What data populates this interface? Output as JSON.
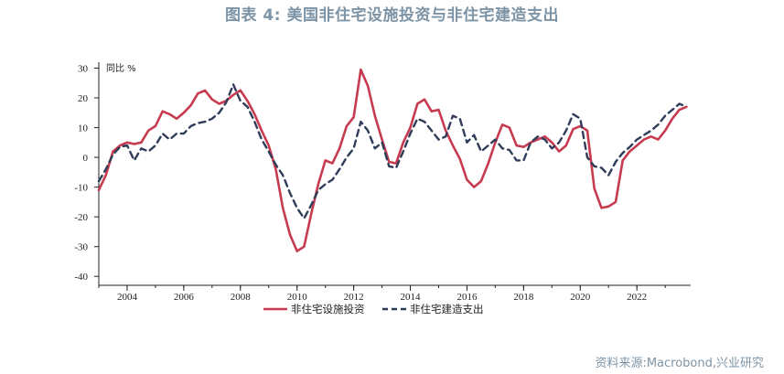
{
  "title": "图表 4:  美国非住宅设施投资与非住宅建造支出",
  "source": "资料来源:Macrobond,兴业研究",
  "colors": {
    "series1": "#c63b50",
    "series2": "#2f3d58",
    "axis": "#222222",
    "title": "#7d94a6"
  },
  "chart_data": {
    "type": "line",
    "ylabel": "同比 %",
    "ylim": [
      -43,
      32
    ],
    "xlim": [
      2003.0,
      2023.9
    ],
    "yticks": [
      30,
      20,
      10,
      0,
      -10,
      -20,
      -30,
      -40
    ],
    "xticks": [
      2004,
      2006,
      2008,
      2010,
      2012,
      2014,
      2016,
      2018,
      2020,
      2022
    ],
    "legend_position": "bottom-center",
    "grid": false,
    "series": [
      {
        "name": "非住宅设施投资",
        "style": "solid",
        "points": [
          [
            2003.0,
            -11
          ],
          [
            2003.25,
            -6
          ],
          [
            2003.5,
            2
          ],
          [
            2003.75,
            4
          ],
          [
            2004.0,
            5
          ],
          [
            2004.25,
            4.5
          ],
          [
            2004.5,
            5
          ],
          [
            2004.75,
            9
          ],
          [
            2005.0,
            10.5
          ],
          [
            2005.25,
            15.5
          ],
          [
            2005.5,
            14.5
          ],
          [
            2005.75,
            13
          ],
          [
            2006.0,
            15
          ],
          [
            2006.25,
            17.5
          ],
          [
            2006.5,
            21.5
          ],
          [
            2006.75,
            22.5
          ],
          [
            2007.0,
            19.5
          ],
          [
            2007.25,
            18
          ],
          [
            2007.5,
            19
          ],
          [
            2007.75,
            21
          ],
          [
            2008.0,
            22.5
          ],
          [
            2008.25,
            19
          ],
          [
            2008.5,
            14.5
          ],
          [
            2008.75,
            9
          ],
          [
            2009.0,
            4
          ],
          [
            2009.25,
            -4
          ],
          [
            2009.5,
            -17
          ],
          [
            2009.75,
            -26
          ],
          [
            2010.0,
            -31.5
          ],
          [
            2010.25,
            -30
          ],
          [
            2010.5,
            -19
          ],
          [
            2010.75,
            -9
          ],
          [
            2011.0,
            -1
          ],
          [
            2011.25,
            -2
          ],
          [
            2011.5,
            3
          ],
          [
            2011.75,
            10.5
          ],
          [
            2012.0,
            13.5
          ],
          [
            2012.25,
            29.5
          ],
          [
            2012.5,
            24
          ],
          [
            2012.75,
            14
          ],
          [
            2013.0,
            6
          ],
          [
            2013.25,
            -1.5
          ],
          [
            2013.5,
            -2
          ],
          [
            2013.75,
            5
          ],
          [
            2014.0,
            10
          ],
          [
            2014.25,
            18
          ],
          [
            2014.5,
            19.5
          ],
          [
            2014.75,
            15.5
          ],
          [
            2015.0,
            16
          ],
          [
            2015.25,
            9
          ],
          [
            2015.5,
            4
          ],
          [
            2015.75,
            -0.5
          ],
          [
            2016.0,
            -7.5
          ],
          [
            2016.25,
            -10
          ],
          [
            2016.5,
            -8
          ],
          [
            2016.75,
            -2
          ],
          [
            2017.0,
            5
          ],
          [
            2017.25,
            11
          ],
          [
            2017.5,
            10
          ],
          [
            2017.75,
            4
          ],
          [
            2018.0,
            3.5
          ],
          [
            2018.25,
            5
          ],
          [
            2018.5,
            6
          ],
          [
            2018.75,
            7
          ],
          [
            2019.0,
            5
          ],
          [
            2019.25,
            2
          ],
          [
            2019.5,
            4
          ],
          [
            2019.75,
            9.5
          ],
          [
            2020.0,
            10.5
          ],
          [
            2020.25,
            9
          ],
          [
            2020.5,
            -10.5
          ],
          [
            2020.75,
            -17
          ],
          [
            2021.0,
            -16.5
          ],
          [
            2021.25,
            -15
          ],
          [
            2021.5,
            -1
          ],
          [
            2021.75,
            2
          ],
          [
            2022.0,
            4
          ],
          [
            2022.25,
            6
          ],
          [
            2022.5,
            7
          ],
          [
            2022.75,
            6
          ],
          [
            2023.0,
            9
          ],
          [
            2023.25,
            13
          ],
          [
            2023.5,
            16
          ],
          [
            2023.75,
            17
          ]
        ]
      },
      {
        "name": "非住宅建造支出",
        "style": "dashed",
        "points": [
          [
            2003.0,
            -8
          ],
          [
            2003.25,
            -4
          ],
          [
            2003.5,
            1
          ],
          [
            2003.75,
            3.5
          ],
          [
            2004.0,
            4
          ],
          [
            2004.25,
            -1
          ],
          [
            2004.5,
            3
          ],
          [
            2004.75,
            2
          ],
          [
            2005.0,
            4
          ],
          [
            2005.25,
            8
          ],
          [
            2005.5,
            6
          ],
          [
            2005.75,
            8
          ],
          [
            2006.0,
            8
          ],
          [
            2006.25,
            10.5
          ],
          [
            2006.5,
            11.5
          ],
          [
            2006.75,
            12
          ],
          [
            2007.0,
            13
          ],
          [
            2007.25,
            15
          ],
          [
            2007.5,
            18.5
          ],
          [
            2007.75,
            24.5
          ],
          [
            2008.0,
            19
          ],
          [
            2008.25,
            17
          ],
          [
            2008.5,
            12
          ],
          [
            2008.75,
            6
          ],
          [
            2009.0,
            2
          ],
          [
            2009.25,
            -2.5
          ],
          [
            2009.5,
            -6
          ],
          [
            2009.75,
            -12
          ],
          [
            2010.0,
            -17
          ],
          [
            2010.25,
            -20.5
          ],
          [
            2010.5,
            -16
          ],
          [
            2010.75,
            -11
          ],
          [
            2011.0,
            -9
          ],
          [
            2011.25,
            -7.5
          ],
          [
            2011.5,
            -4
          ],
          [
            2011.75,
            0
          ],
          [
            2012.0,
            3
          ],
          [
            2012.25,
            12
          ],
          [
            2012.5,
            9
          ],
          [
            2012.75,
            3
          ],
          [
            2013.0,
            5
          ],
          [
            2013.25,
            -3
          ],
          [
            2013.5,
            -3.5
          ],
          [
            2013.75,
            2
          ],
          [
            2014.0,
            8
          ],
          [
            2014.25,
            13
          ],
          [
            2014.5,
            12
          ],
          [
            2014.75,
            9
          ],
          [
            2015.0,
            6
          ],
          [
            2015.25,
            7
          ],
          [
            2015.5,
            14
          ],
          [
            2015.75,
            13
          ],
          [
            2016.0,
            5
          ],
          [
            2016.25,
            7.5
          ],
          [
            2016.5,
            2
          ],
          [
            2016.75,
            4
          ],
          [
            2017.0,
            6
          ],
          [
            2017.25,
            3
          ],
          [
            2017.5,
            2.5
          ],
          [
            2017.75,
            -1
          ],
          [
            2018.0,
            -1
          ],
          [
            2018.25,
            5
          ],
          [
            2018.5,
            7
          ],
          [
            2018.75,
            6
          ],
          [
            2019.0,
            3
          ],
          [
            2019.25,
            5
          ],
          [
            2019.5,
            9
          ],
          [
            2019.75,
            14.5
          ],
          [
            2020.0,
            13
          ],
          [
            2020.25,
            0
          ],
          [
            2020.5,
            -3
          ],
          [
            2020.75,
            -3.5
          ],
          [
            2021.0,
            -6
          ],
          [
            2021.25,
            -1.5
          ],
          [
            2021.5,
            1.5
          ],
          [
            2021.75,
            3.5
          ],
          [
            2022.0,
            6
          ],
          [
            2022.25,
            7.5
          ],
          [
            2022.5,
            9
          ],
          [
            2022.75,
            11
          ],
          [
            2023.0,
            14
          ],
          [
            2023.25,
            16
          ],
          [
            2023.5,
            18
          ],
          [
            2023.75,
            17
          ]
        ]
      }
    ]
  }
}
